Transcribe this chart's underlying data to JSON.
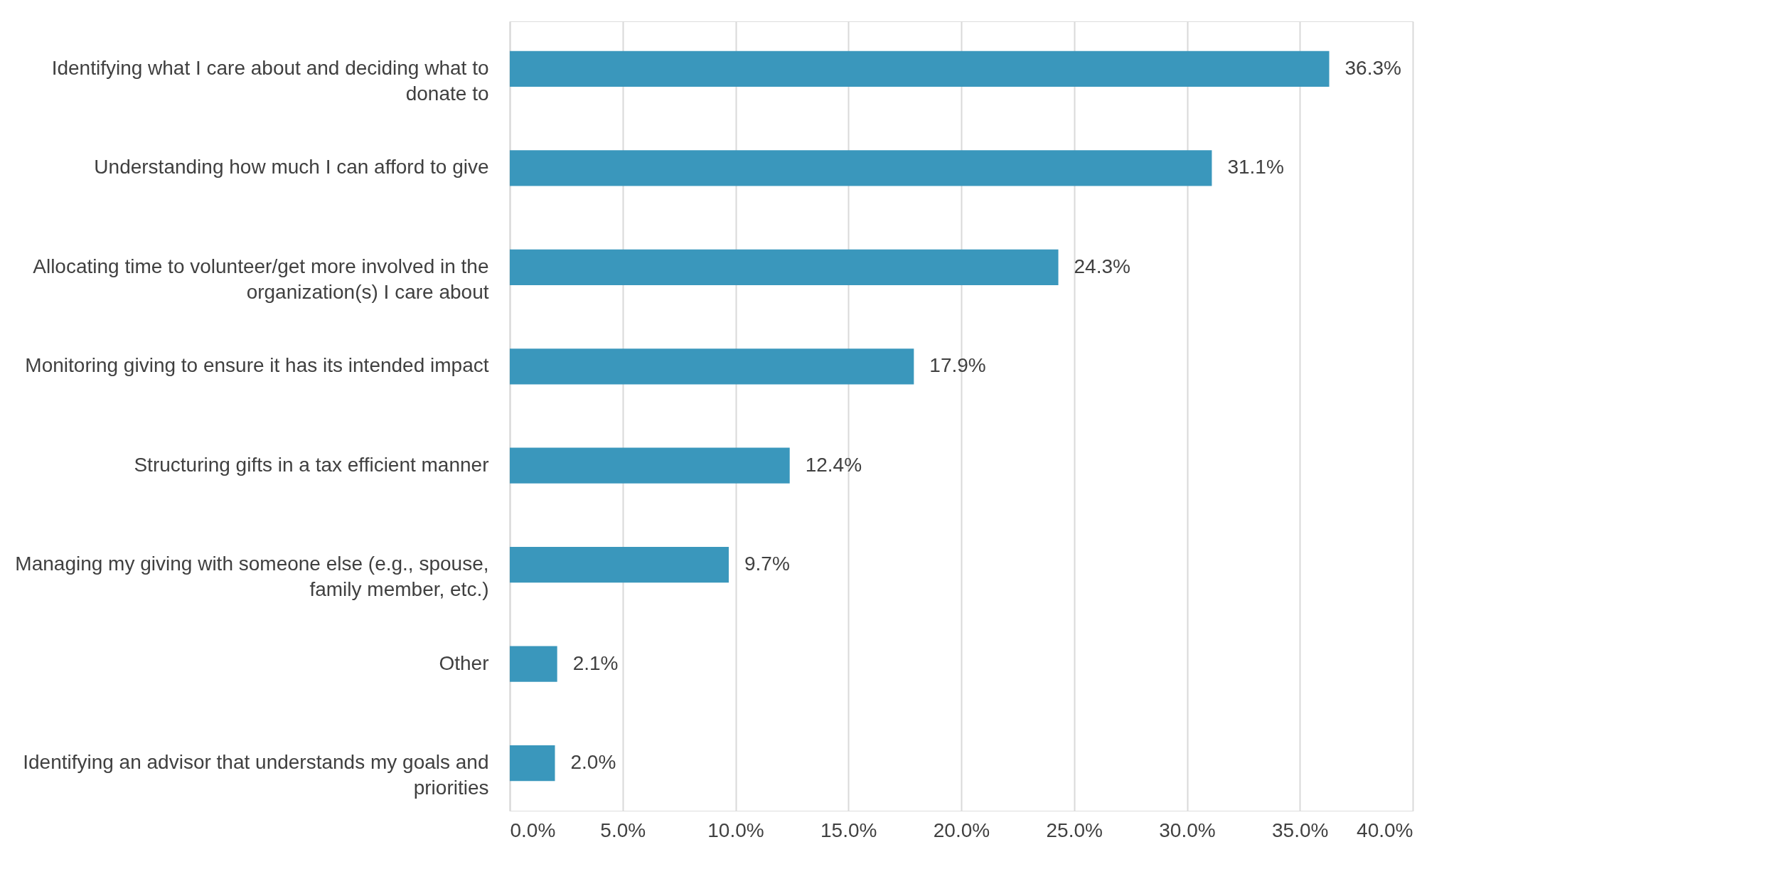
{
  "chart_data": {
    "type": "bar",
    "orientation": "horizontal",
    "categories": [
      "Identifying what I care about and deciding what to donate to",
      "Understanding how much I can afford to give",
      "Allocating time to volunteer/get more involved in the organization(s) I care about",
      "Monitoring giving to ensure it has its intended impact",
      "Structuring gifts in a tax efficient manner",
      "Managing my giving with someone else (e.g., spouse, family member, etc.)",
      "Other",
      "Identifying an advisor that understands my goals and priorities"
    ],
    "values": [
      36.3,
      31.1,
      24.3,
      17.9,
      12.4,
      9.7,
      2.1,
      2.0
    ],
    "value_labels": [
      "36.3%",
      "31.1%",
      "24.3%",
      "17.9%",
      "12.4%",
      "9.7%",
      "2.1%",
      "2.0%"
    ],
    "color": "#3a97bc",
    "xlim": [
      0,
      40
    ],
    "xticks": [
      {
        "value": 0,
        "label": "0.0%"
      },
      {
        "value": 5,
        "label": "5.0%"
      },
      {
        "value": 10,
        "label": "10.0%"
      },
      {
        "value": 15,
        "label": "15.0%"
      },
      {
        "value": 20,
        "label": "20.0%"
      },
      {
        "value": 25,
        "label": "25.0%"
      },
      {
        "value": 30,
        "label": "30.0%"
      },
      {
        "value": 35,
        "label": "35.0%"
      },
      {
        "value": 40,
        "label": "40.0%"
      }
    ],
    "grid": "x"
  }
}
